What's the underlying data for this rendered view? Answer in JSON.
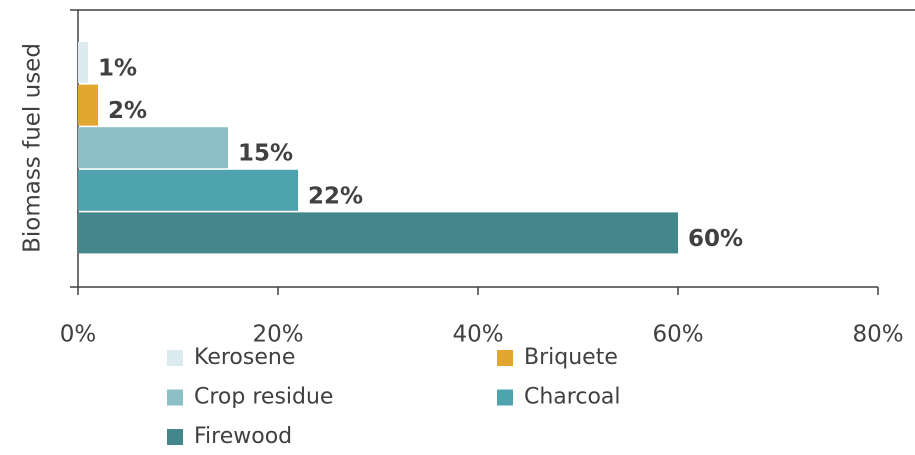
{
  "chart_data": {
    "type": "bar",
    "orientation": "horizontal",
    "ylabel": "Biomass fuel used",
    "series": [
      {
        "name": "Kerosene",
        "color": "#dcebef",
        "values": [
          1
        ],
        "value_labels": [
          "1%"
        ]
      },
      {
        "name": "Briquete",
        "color": "#e2a72e",
        "values": [
          2
        ],
        "value_labels": [
          "2%"
        ]
      },
      {
        "name": "Crop residue",
        "color": "#8bbfc5",
        "values": [
          15
        ],
        "value_labels": [
          "15%"
        ]
      },
      {
        "name": "Charcoal",
        "color": "#4ea3ae",
        "values": [
          22
        ],
        "value_labels": [
          "22%"
        ]
      },
      {
        "name": "Firewood",
        "color": "#43868c",
        "values": [
          60
        ],
        "value_labels": [
          "60%"
        ]
      }
    ],
    "xlim": [
      0,
      80
    ],
    "xticks": [
      {
        "value": 0,
        "label": "0%"
      },
      {
        "value": 20,
        "label": "20%"
      },
      {
        "value": 40,
        "label": "40%"
      },
      {
        "value": 60,
        "label": "60%"
      },
      {
        "value": 80,
        "label": "80%"
      }
    ],
    "legend": "bottom"
  }
}
